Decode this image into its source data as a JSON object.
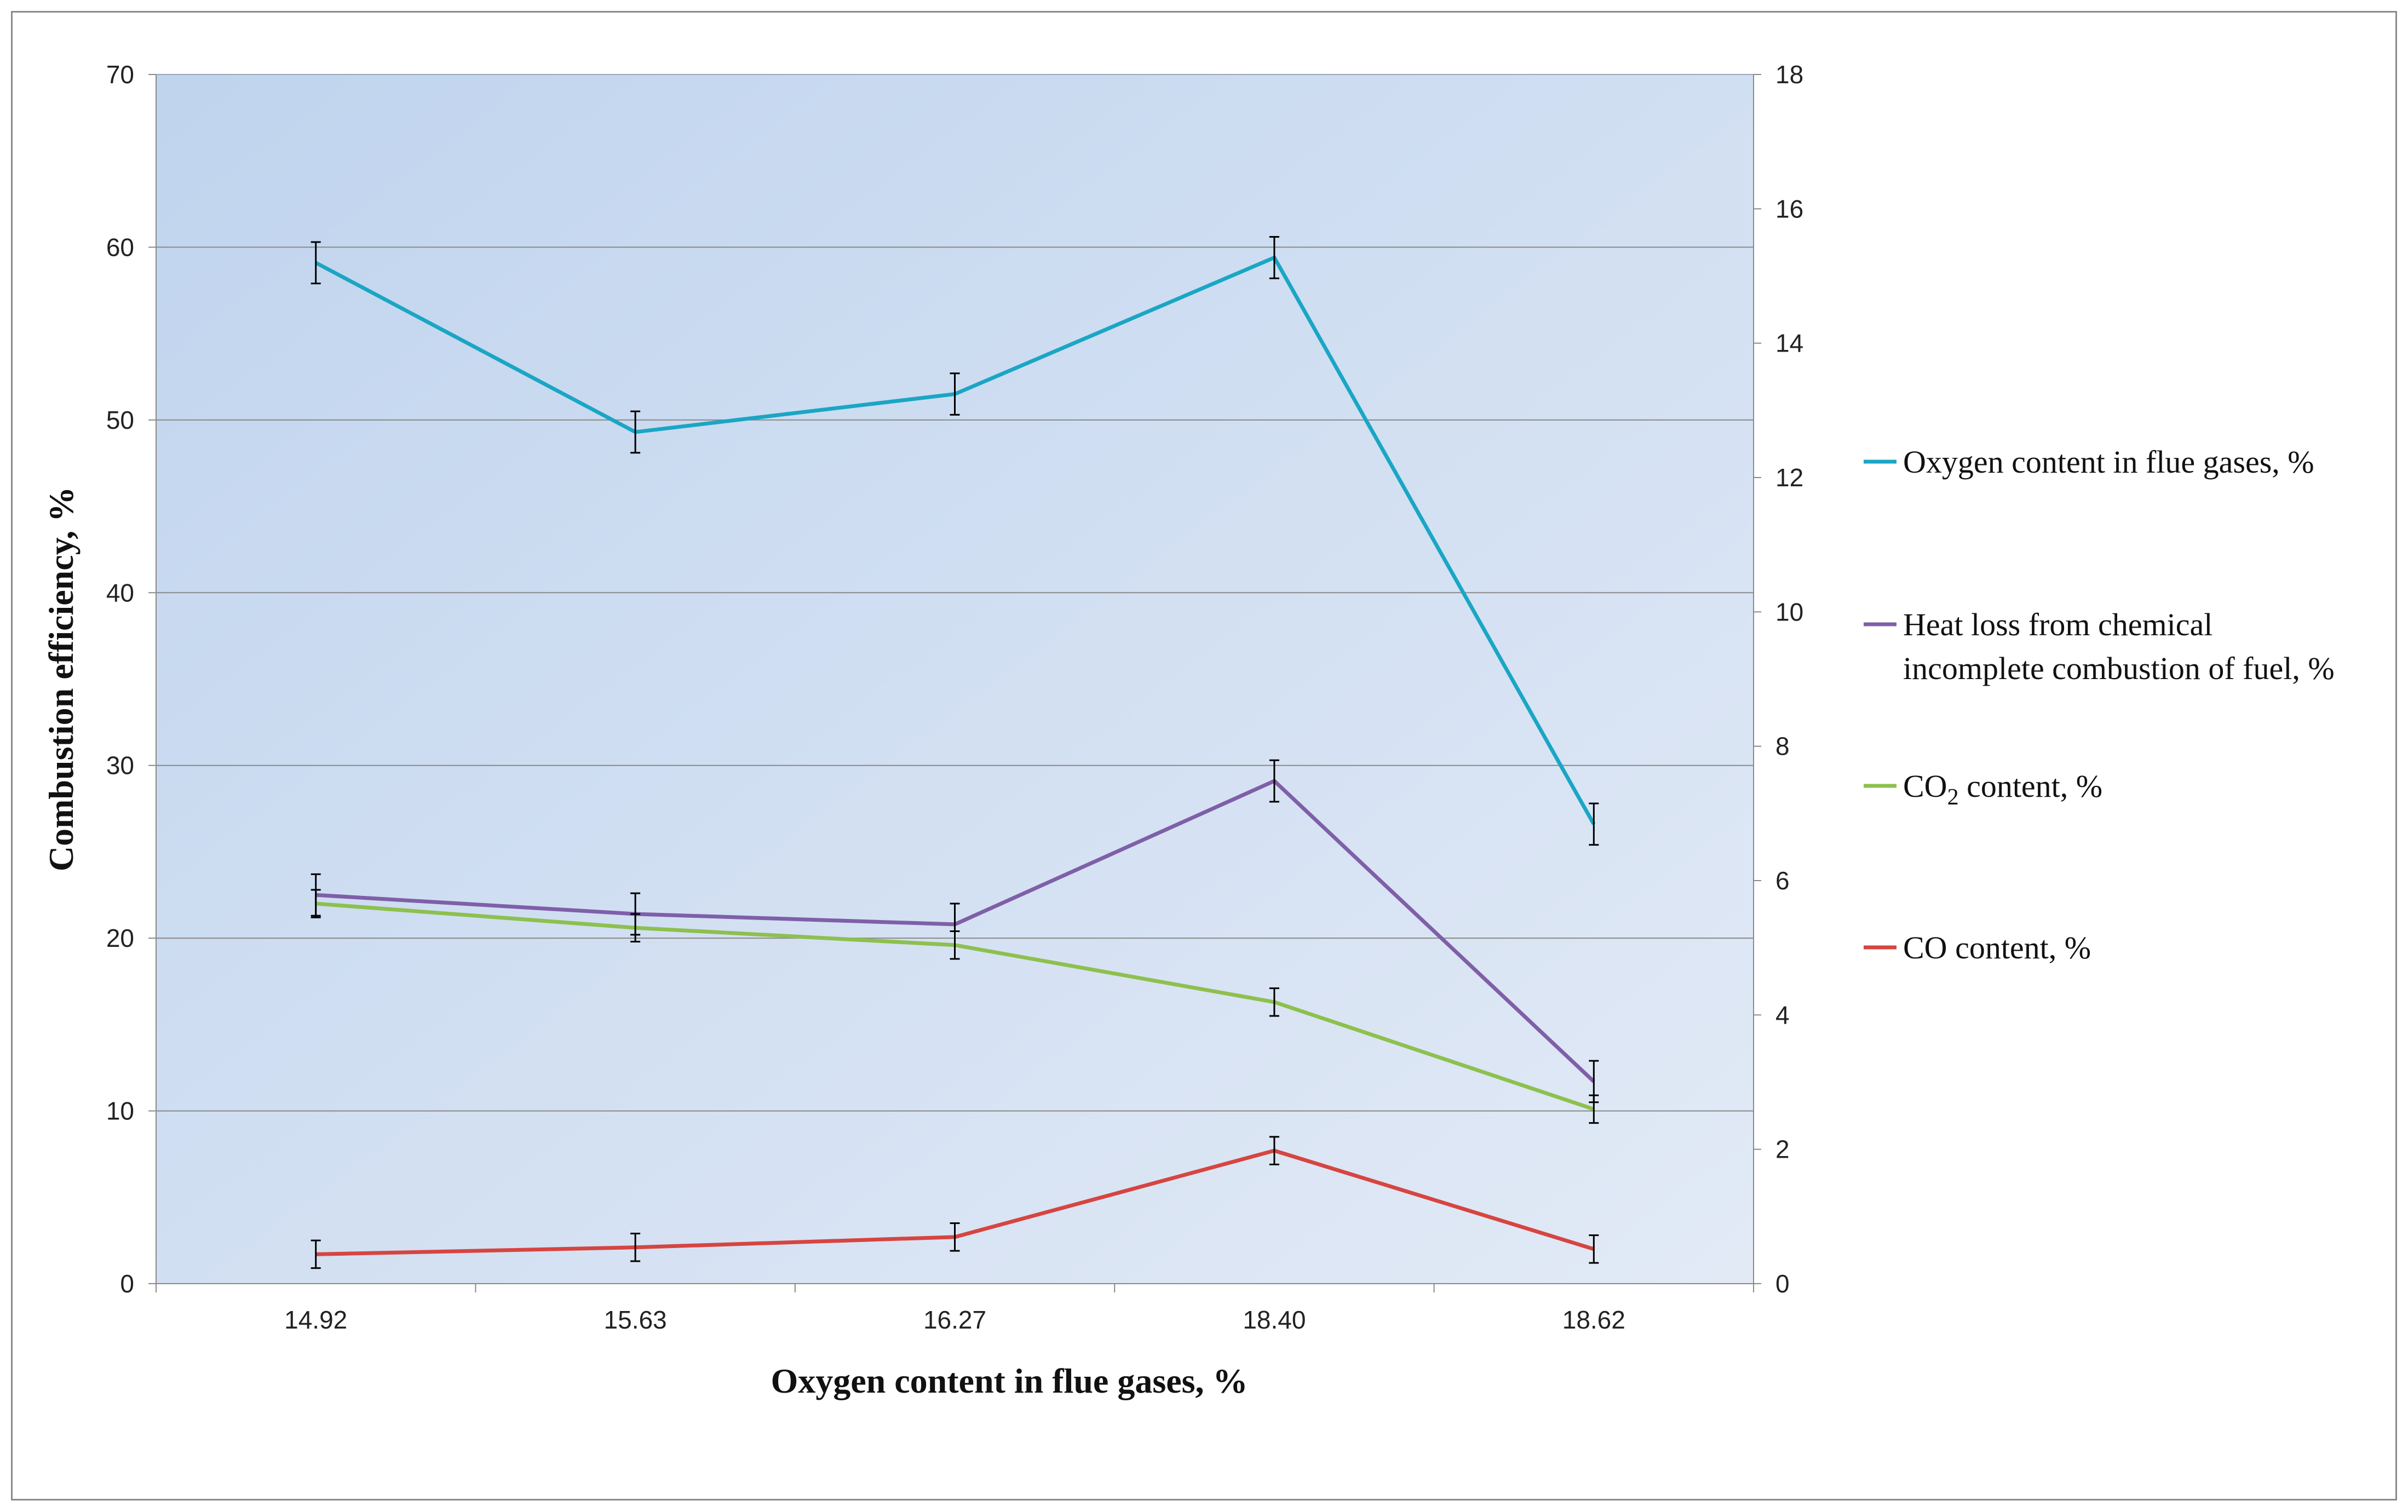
{
  "chart_data": {
    "type": "line",
    "title": "",
    "xlabel": "Oxygen content in flue gases, %",
    "ylabel": "Combustion efficiency, %",
    "categories": [
      "14.92",
      "15.63",
      "16.27",
      "18.40",
      "18.62"
    ],
    "ylim_left": [
      0,
      70
    ],
    "yticks_left": [
      "0",
      "10",
      "20",
      "30",
      "40",
      "50",
      "60",
      "70"
    ],
    "ylim_right": [
      0,
      18
    ],
    "yticks_right": [
      "0",
      "2",
      "4",
      "6",
      "8",
      "10",
      "12",
      "14",
      "16",
      "18"
    ],
    "grid": true,
    "legend_position": "right",
    "series": [
      {
        "name": "Oxygen content in flue gases, %",
        "color": "#1aa6c4",
        "axis": "left",
        "values": [
          59.1,
          49.3,
          51.5,
          59.4,
          26.6
        ],
        "error": 1.2
      },
      {
        "name": "Heat loss from chemical incomplete combustion of fuel, %",
        "legend_lines": [
          "Heat loss from chemical",
          "incomplete combustion of fuel, %"
        ],
        "color": "#7f5fa8",
        "axis": "left",
        "values": [
          22.5,
          21.4,
          20.8,
          29.1,
          11.7
        ],
        "error": 1.2
      },
      {
        "name": "CO2 content, %",
        "legend_main": "CO",
        "legend_sub": "2",
        "legend_rest": " content, %",
        "color": "#8dc04e",
        "axis": "left",
        "values": [
          22.0,
          20.6,
          19.6,
          16.3,
          10.1
        ],
        "error": 0.8
      },
      {
        "name": "CO content, %",
        "color": "#d64541",
        "axis": "left",
        "values": [
          1.7,
          2.1,
          2.7,
          7.7,
          2.0
        ],
        "error": 0.8
      }
    ]
  }
}
